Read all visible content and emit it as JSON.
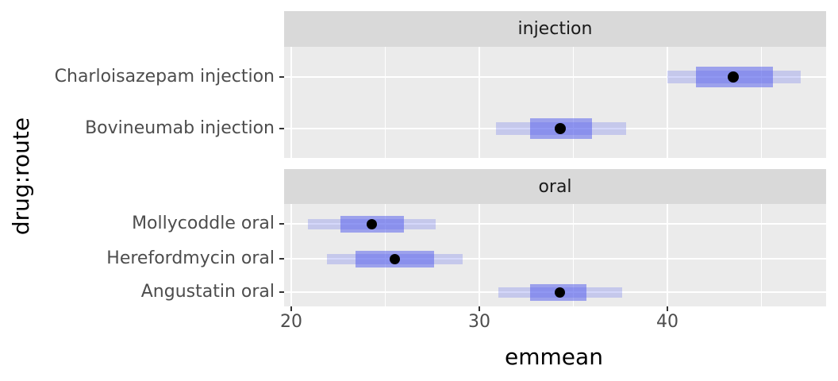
{
  "chart_data": {
    "type": "pointrange",
    "title": "",
    "xlabel": "emmean",
    "ylabel": "drug:route",
    "xlim": [
      19.62,
      48.44
    ],
    "x_ticks": [
      20,
      30,
      40
    ],
    "x_tick_labels": [
      "20",
      "30",
      "40"
    ],
    "x_minor_ticks": [
      25,
      35,
      45
    ],
    "grid": "on",
    "legend": "none",
    "facets": [
      {
        "label": "injection",
        "rows": [
          {
            "label": "Charloisazepam injection",
            "estimate": 43.5,
            "inner_interval": [
              41.5,
              45.6
            ],
            "outer_interval": [
              40.0,
              47.1
            ]
          },
          {
            "label": "Bovineumab injection",
            "estimate": 34.3,
            "inner_interval": [
              32.7,
              36.0
            ],
            "outer_interval": [
              30.9,
              37.8
            ]
          }
        ]
      },
      {
        "label": "oral",
        "rows": [
          {
            "label": "Mollycoddle oral",
            "estimate": 24.3,
            "inner_interval": [
              22.6,
              26.0
            ],
            "outer_interval": [
              20.9,
              27.7
            ]
          },
          {
            "label": "Herefordmycin oral",
            "estimate": 25.5,
            "inner_interval": [
              23.4,
              27.6
            ],
            "outer_interval": [
              21.9,
              29.1
            ]
          },
          {
            "label": "Angustatin oral",
            "estimate": 34.3,
            "inner_interval": [
              32.7,
              35.7
            ],
            "outer_interval": [
              31.0,
              37.6
            ]
          }
        ]
      }
    ],
    "colors": {
      "interval_base": "#555EED",
      "inner_alpha": 0.53,
      "outer_alpha": 0.25,
      "point": "#000000",
      "panel_bg": "#EBEBEB",
      "strip_bg": "#D9D9D9",
      "gridline": "#FFFFFF",
      "axis_text": "#4D4D4D",
      "strip_text": "#1A1A1A",
      "tick_mark": "#333333",
      "axis_title": "#000000"
    }
  }
}
